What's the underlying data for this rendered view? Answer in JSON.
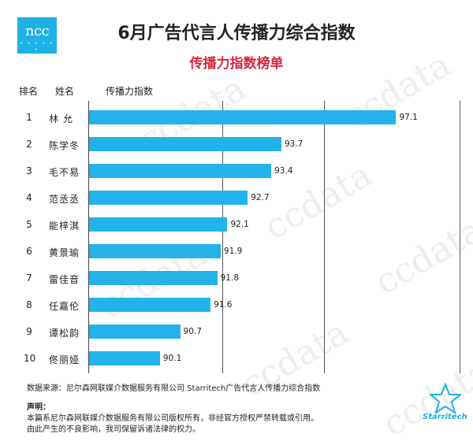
{
  "logo": {
    "text": "ncc",
    "dots": "• • • • • •"
  },
  "title": "6月广告代言人传播力综合指数",
  "subtitle": "传播力指数榜单",
  "headers": {
    "rank": "排名",
    "name": "姓名",
    "index": "传播力指数"
  },
  "watermark": "ccdata",
  "colors": {
    "bar": "#23b3ea",
    "subtitle": "#d7263d",
    "logo": "#1fb1e6"
  },
  "chart_data": {
    "type": "bar",
    "orientation": "horizontal",
    "title": "6月广告代言人传播力综合指数",
    "subtitle": "传播力指数榜单",
    "ranks": [
      "1",
      "2",
      "3",
      "4",
      "5",
      "6",
      "7",
      "8",
      "9",
      "10"
    ],
    "categories": [
      "林 允",
      "陈学冬",
      "毛不易",
      "范丞丞",
      "能梓淇",
      "黄景瑜",
      "雷佳音",
      "任嘉伦",
      "谭松韵",
      "佟丽娅"
    ],
    "values": [
      97.1,
      93.7,
      93.4,
      92.7,
      92.1,
      91.9,
      91.8,
      91.6,
      90.7,
      90.1
    ],
    "value_labels": [
      "97.1",
      "93.7",
      "93.4",
      "92.7",
      "92.1",
      "91.9",
      "91.8",
      "91.6",
      "90.7",
      "90.1"
    ],
    "xlim": [
      88,
      98
    ],
    "grid": true
  },
  "footer": {
    "source": "数据来源：尼尔森网联媒介数据服务有限公司  Starritech广告代言人传播力综合指数",
    "note_heading": "声明：",
    "note_line1": "本篇系尼尔森网联媒介数据服务有限公司版权所有，非经官方授权严禁转载或引用。",
    "note_line2": "由此产生的不良影响，我司保留诉诸法律的权力。",
    "brand": "Starritech"
  }
}
